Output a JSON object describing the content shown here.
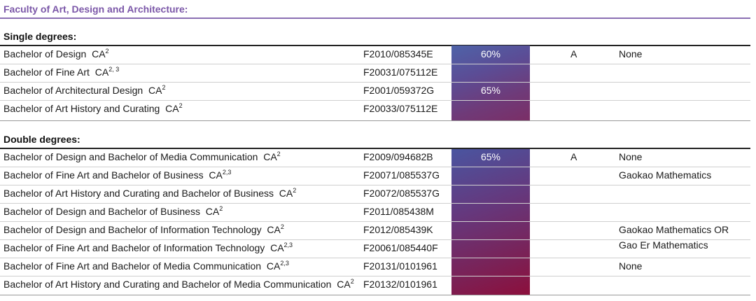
{
  "faculty_title": "Faculty of Art, Design and Architecture:",
  "single": {
    "title": "Single degrees:",
    "rows": [
      {
        "degree": "Bachelor of Design",
        "tag": "CA",
        "sup": "2",
        "code": "F2010/085345E"
      },
      {
        "degree": "Bachelor of Fine Art",
        "tag": "CA",
        "sup": "2, 3",
        "code": "F20031/075112E"
      },
      {
        "degree": "Bachelor of Architectural Design",
        "tag": "CA",
        "sup": "2",
        "code": "F2001/059372G"
      },
      {
        "degree": "Bachelor of Art History and Curating",
        "tag": "CA",
        "sup": "2",
        "code": "F20033/075112E"
      }
    ],
    "scores": [
      "60%",
      "65%"
    ],
    "grade": "A",
    "prereq": "None"
  },
  "double": {
    "title": "Double degrees:",
    "rows": [
      {
        "degree": "Bachelor of Design and Bachelor of Media Communication",
        "tag": "CA",
        "sup": "2",
        "code": "F2009/094682B"
      },
      {
        "degree": "Bachelor of Fine Art and Bachelor of Business",
        "tag": "CA",
        "sup": "2,3",
        "code": "F20071/085537G"
      },
      {
        "degree": "Bachelor of Art History and Curating and Bachelor of Business",
        "tag": "CA",
        "sup": "2",
        "code": "F20072/085537G"
      },
      {
        "degree": "Bachelor of Design and Bachelor of Business",
        "tag": "CA",
        "sup": "2",
        "code": "F2011/085438M"
      },
      {
        "degree": "Bachelor of Design and Bachelor of Information Technology",
        "tag": "CA",
        "sup": "2",
        "code": "F2012/085439K"
      },
      {
        "degree": "Bachelor of Fine Art and Bachelor of Information Technology",
        "tag": "CA",
        "sup": "2,3",
        "code": "F20061/085440F"
      },
      {
        "degree": "Bachelor of Fine Art and Bachelor of Media Communication",
        "tag": "CA",
        "sup": "2,3",
        "code": "F20131/0101961"
      },
      {
        "degree": "Bachelor of Art History and Curating and Bachelor of Media Communication",
        "tag": "CA",
        "sup": "2",
        "code": "F20132/0101961"
      }
    ],
    "score": "65%",
    "grade": "A",
    "prereqs": [
      "None",
      "Gaokao Mathematics",
      "Gaokao Mathematics OR",
      "Gao Er Mathematics",
      "None"
    ]
  },
  "colors": {
    "faculty_purple": "#7b57a8",
    "gradient_blue": "#4e63a8",
    "gradient_maroon": "#8c0f3c"
  }
}
